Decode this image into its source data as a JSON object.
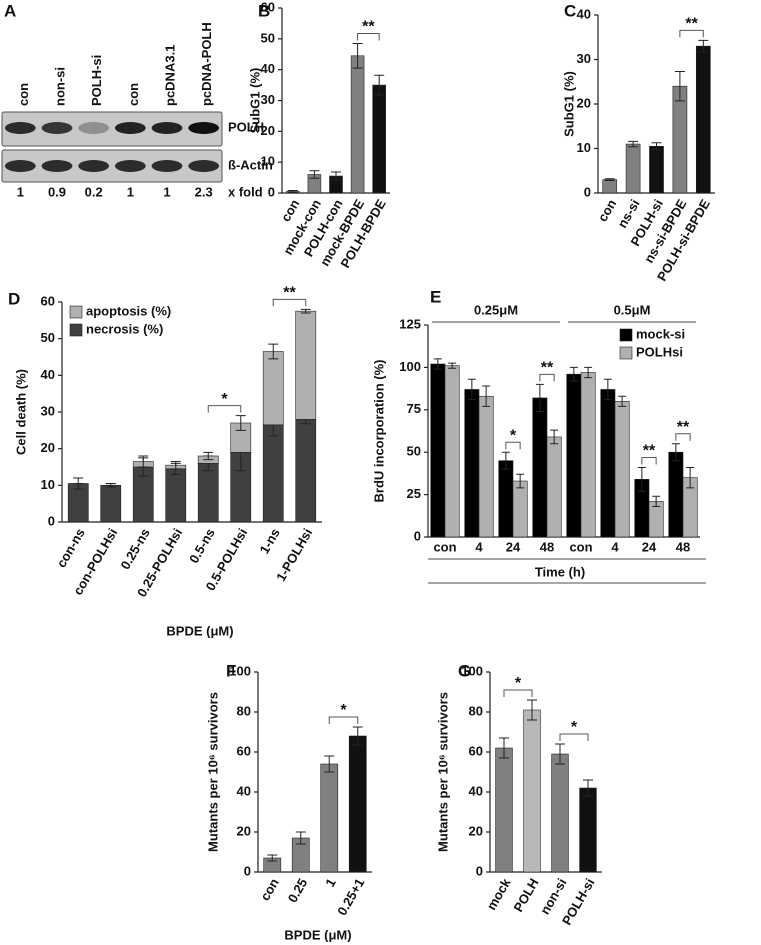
{
  "blot": {
    "panel": "A",
    "lanes": [
      "con",
      "non-si",
      "POLH-si",
      "con",
      "pcDNA3.1",
      "pcDNA-POLH"
    ],
    "rows": [
      "POLH",
      "ß-Actin"
    ],
    "fold": [
      1,
      0.9,
      0.2,
      1,
      1,
      2.3
    ],
    "fold_label": "x fold"
  },
  "chart_data": [
    {
      "panel": "B",
      "type": "bar",
      "y_label": "SubG1 (%)",
      "categories": [
        "con",
        "mock-con",
        "POLH-con",
        "mock-BPDE",
        "POLH-BPDE"
      ],
      "values": [
        0.5,
        6,
        5.5,
        44.5,
        35
      ],
      "errors": [
        0.3,
        1.2,
        1.3,
        4,
        3.2
      ],
      "colors": [
        "#808080",
        "#808080",
        "#111111",
        "#808080",
        "#111111"
      ],
      "significance": [
        null,
        null,
        null,
        null,
        "**"
      ],
      "ylim": [
        0,
        60
      ],
      "yticks": [
        0,
        10,
        20,
        30,
        40,
        50,
        60
      ]
    },
    {
      "panel": "C",
      "type": "bar",
      "y_label": "SubG1 (%)",
      "categories": [
        "con",
        "ns-si",
        "POLH-si",
        "ns-si-BPDE",
        "POLH-si-BPDE"
      ],
      "values": [
        3,
        11,
        10.5,
        24,
        33
      ],
      "errors": [
        0.2,
        0.6,
        0.8,
        3.3,
        1.3
      ],
      "colors": [
        "#808080",
        "#808080",
        "#111111",
        "#808080",
        "#111111"
      ],
      "significance": [
        null,
        null,
        null,
        null,
        "**"
      ],
      "ylim": [
        0,
        40
      ],
      "yticks": [
        0,
        10,
        20,
        30,
        40
      ]
    },
    {
      "panel": "D",
      "type": "stacked_bar",
      "y_label": "Cell death (%)",
      "x_label": "BPDE (μM)",
      "categories": [
        "con-ns",
        "con-POLHsi",
        "0.25-ns",
        "0.25-POLHsi",
        "0.5-ns",
        "0.5-POLHsi",
        "1-ns",
        "1-POLHsi"
      ],
      "series": [
        {
          "name": "necrosis (%)",
          "color": "#404040",
          "values": [
            10.5,
            10,
            15,
            14.5,
            16,
            19,
            26.5,
            28
          ],
          "errors": [
            1.5,
            0.5,
            2.5,
            1.5,
            2,
            5,
            3,
            1.2
          ]
        },
        {
          "name": "apoptosis (%)",
          "color": "#b0b0b0",
          "values": [
            0,
            0,
            1.5,
            1,
            2,
            8,
            20,
            29.5
          ],
          "errors": [
            0,
            0,
            1.5,
            1,
            1,
            2,
            2,
            0.5
          ]
        }
      ],
      "significance": [
        null,
        null,
        null,
        null,
        null,
        "*",
        null,
        "**"
      ],
      "legend": "upper left",
      "ylim": [
        0,
        60
      ],
      "yticks": [
        0,
        10,
        20,
        30,
        40,
        50,
        60
      ]
    },
    {
      "panel": "E",
      "type": "grouped_bar",
      "y_label": "BrdU incorporation (%)",
      "x_label": "Time (h)",
      "group_labels": [
        "0.25μM",
        "0.5μM"
      ],
      "categories": [
        "con",
        "4",
        "24",
        "48",
        "con",
        "4",
        "24",
        "48"
      ],
      "series": [
        {
          "name": "mock-si",
          "color": "#000000",
          "values": [
            102,
            87,
            45,
            82,
            96,
            87,
            34,
            50
          ],
          "errors": [
            3,
            6,
            5,
            8,
            4,
            6,
            7,
            5
          ]
        },
        {
          "name": "POLHsi",
          "color": "#b0b0b0",
          "values": [
            101,
            83,
            33,
            59,
            97,
            80,
            21,
            35
          ],
          "errors": [
            1.5,
            6,
            4,
            4,
            3,
            3,
            3,
            6
          ]
        }
      ],
      "significance": [
        null,
        null,
        "*",
        "**",
        null,
        null,
        "**",
        "**"
      ],
      "legend": "upper right",
      "ylim": [
        0,
        125
      ],
      "yticks": [
        0,
        25,
        50,
        75,
        100,
        125
      ]
    },
    {
      "panel": "F",
      "type": "bar",
      "y_label": "Mutants per 10⁶ survivors",
      "x_label": "BPDE (μM)",
      "categories": [
        "con",
        "0.25",
        "1",
        "0.25+1"
      ],
      "values": [
        7,
        17,
        54,
        68
      ],
      "errors": [
        1.5,
        3,
        4,
        4.5
      ],
      "colors": [
        "#808080",
        "#808080",
        "#808080",
        "#111111"
      ],
      "significance": [
        null,
        null,
        null,
        "*"
      ],
      "ylim": [
        0,
        100
      ],
      "yticks": [
        0,
        20,
        40,
        60,
        80,
        100
      ]
    },
    {
      "panel": "G",
      "type": "bar",
      "y_label": "Mutants per 10⁶ survivors",
      "categories": [
        "mock",
        "POLH",
        "non-si",
        "POLH-si"
      ],
      "values": [
        62,
        81,
        59,
        42
      ],
      "errors": [
        5,
        5,
        5,
        4
      ],
      "colors": [
        "#808080",
        "#b8b8b8",
        "#808080",
        "#111111"
      ],
      "significance": [
        null,
        "*",
        null,
        "*"
      ],
      "ylim": [
        0,
        100
      ],
      "yticks": [
        0,
        20,
        40,
        60,
        80,
        100
      ]
    }
  ]
}
